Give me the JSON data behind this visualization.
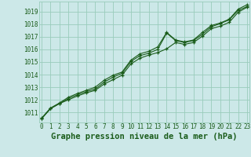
{
  "title": "Graphe pression niveau de la mer (hPa)",
  "bg_color": "#cce8e8",
  "grid_color": "#99ccbb",
  "line_color": "#1a5c1a",
  "x_ticks": [
    0,
    1,
    2,
    3,
    4,
    5,
    6,
    7,
    8,
    9,
    10,
    11,
    12,
    13,
    14,
    15,
    16,
    17,
    18,
    19,
    20,
    21,
    22,
    23
  ],
  "y_ticks": [
    1011,
    1012,
    1013,
    1014,
    1015,
    1016,
    1017,
    1018,
    1019
  ],
  "ylim": [
    1010.2,
    1019.8
  ],
  "xlim": [
    -0.3,
    23.3
  ],
  "main_values": [
    1010.5,
    1011.3,
    1011.7,
    1012.1,
    1012.4,
    1012.65,
    1012.85,
    1013.4,
    1013.8,
    1014.1,
    1015.05,
    1015.5,
    1015.7,
    1016.0,
    1017.3,
    1016.7,
    1016.55,
    1016.7,
    1017.2,
    1017.8,
    1018.05,
    1018.35,
    1019.1,
    1019.4
  ],
  "low_values": [
    1010.5,
    1011.3,
    1011.7,
    1012.0,
    1012.3,
    1012.55,
    1012.75,
    1013.25,
    1013.6,
    1013.95,
    1014.85,
    1015.3,
    1015.55,
    1015.75,
    1016.05,
    1016.55,
    1016.4,
    1016.55,
    1017.05,
    1017.65,
    1017.85,
    1018.15,
    1018.95,
    1019.35
  ],
  "high_values": [
    1010.55,
    1011.35,
    1011.75,
    1012.2,
    1012.5,
    1012.75,
    1013.0,
    1013.55,
    1013.95,
    1014.2,
    1015.15,
    1015.65,
    1015.85,
    1016.2,
    1017.35,
    1016.75,
    1016.6,
    1016.75,
    1017.35,
    1017.9,
    1018.1,
    1018.4,
    1019.2,
    1019.55
  ],
  "marker": "+",
  "marker_size": 3.5,
  "line_width": 0.8,
  "title_fontsize": 7.5,
  "tick_fontsize": 5.5
}
